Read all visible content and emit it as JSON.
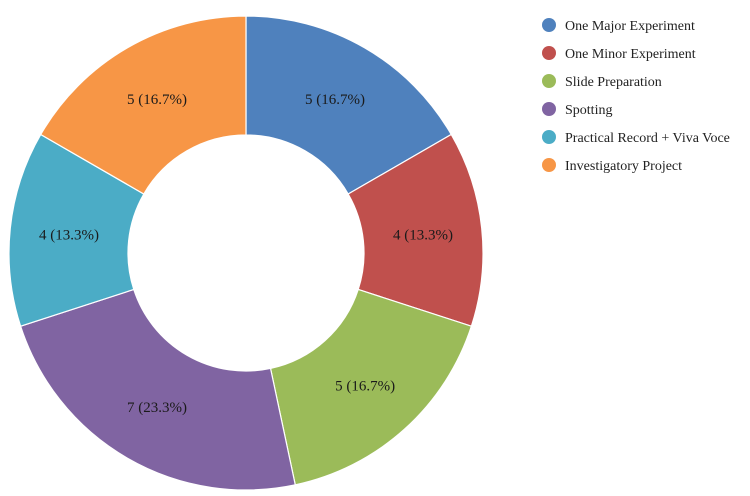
{
  "chart_data": {
    "type": "pie",
    "style": "donut",
    "slices": [
      {
        "label": "One Major Experiment",
        "value": 5,
        "percent": 16.7,
        "display": "5 (16.7%)",
        "color": "#4f81bd"
      },
      {
        "label": "One Minor Experiment",
        "value": 4,
        "percent": 13.3,
        "display": "4 (13.3%)",
        "color": "#c0504d"
      },
      {
        "label": "Slide Preparation",
        "value": 5,
        "percent": 16.7,
        "display": "5 (16.7%)",
        "color": "#9bbb59"
      },
      {
        "label": "Spotting",
        "value": 7,
        "percent": 23.3,
        "display": "7 (23.3%)",
        "color": "#8064a2"
      },
      {
        "label": "Practical Record + Viva Voce",
        "value": 4,
        "percent": 13.3,
        "display": "4 (13.3%)",
        "color": "#4bacc6"
      },
      {
        "label": "Investigatory Project",
        "value": 5,
        "percent": 16.7,
        "display": "5 (16.7%)",
        "color": "#f79646"
      }
    ],
    "legend_position": "top-right",
    "start": "top",
    "direction": "clockwise"
  }
}
